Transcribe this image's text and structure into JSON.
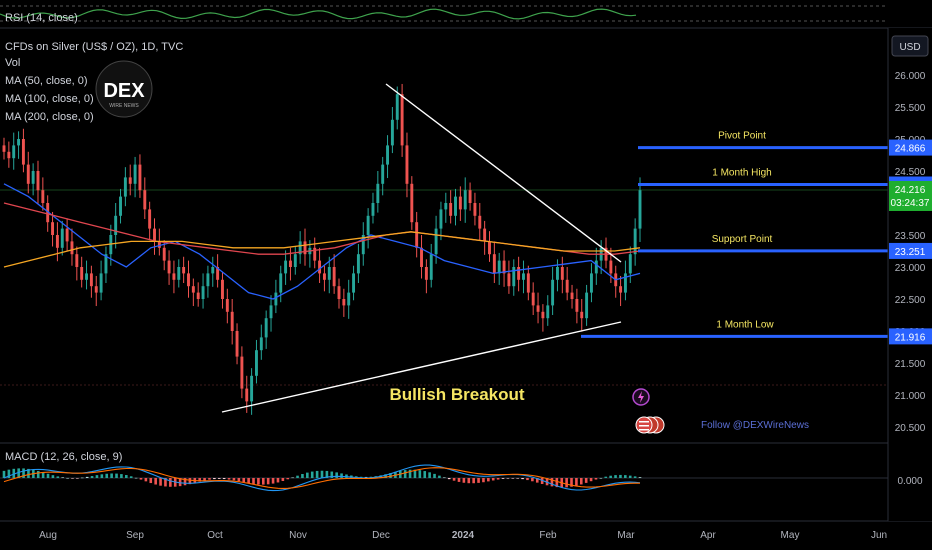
{
  "colors": {
    "background": "#000000",
    "up": "#26a69a",
    "down": "#ef5350",
    "ma50": "#2962ff",
    "ma100": "#e0464f",
    "ma200": "#f5a623",
    "levels": "#2962ff",
    "level_text": "#f5e663",
    "trendline": "#ffffff",
    "macd_line": "#2196f3",
    "signal_line": "#ff6d00",
    "rsi_line": "#3fa34d",
    "price_badge": "#1fae2f"
  },
  "rsi_panel": {
    "label": "RSI (14, close)"
  },
  "legend": {
    "symbol": "CFDs on Silver (US$ / OZ), 1D, TVC",
    "vol": "Vol",
    "ma50": "MA (50, close, 0)",
    "ma100": "MA (100, close, 0)",
    "ma200": "MA (200, close, 0)"
  },
  "logo": {
    "text": "DEX",
    "subtext": "WIRE NEWS"
  },
  "currency_button": "USD",
  "price_axis": {
    "ticks": [
      "26.000",
      "25.500",
      "25.000",
      "24.500",
      "24.000",
      "23.500",
      "23.000",
      "22.500",
      "22.000",
      "21.500",
      "21.000",
      "20.500"
    ]
  },
  "level_labels": [
    {
      "name": "Pivot Point",
      "price": "24.866"
    },
    {
      "name": "1 Month High",
      "price": "24.289"
    },
    {
      "name": "Support Point",
      "price": "23.251"
    },
    {
      "name": "1 Month Low",
      "price": "21.916"
    }
  ],
  "current_price": {
    "price": "24.216",
    "countdown": "03:24:37"
  },
  "annotation": "Bullish Breakout",
  "follow_text": "Follow @DEXWireNews",
  "macd_panel": {
    "label": "MACD (12, 26, close, 9)",
    "axis_value": "0.000"
  },
  "time_axis": [
    "Aug",
    "Sep",
    "Oct",
    "Nov",
    "Dec",
    "2024",
    "Feb",
    "Mar",
    "Apr",
    "May",
    "Jun"
  ],
  "chart_data": {
    "type": "candlestick",
    "title": "CFDs on Silver (US$ / OZ), 1D, TVC",
    "ylim": [
      20.4,
      26.4
    ],
    "y_ticks": [
      26.0,
      25.5,
      25.0,
      24.5,
      24.0,
      23.5,
      23.0,
      22.5,
      22.0,
      21.5,
      21.0,
      20.5
    ],
    "x_ticks": [
      "Aug",
      "Sep",
      "Oct",
      "Nov",
      "Dec",
      "2024",
      "Feb",
      "Mar",
      "Apr",
      "May",
      "Jun"
    ],
    "close_series": [
      24.8,
      24.7,
      24.9,
      25.0,
      24.6,
      24.3,
      24.5,
      24.2,
      24.0,
      23.7,
      23.5,
      23.3,
      23.6,
      23.4,
      23.2,
      23.0,
      22.8,
      22.9,
      22.7,
      22.6,
      22.9,
      23.2,
      23.5,
      23.8,
      24.1,
      24.4,
      24.3,
      24.6,
      24.2,
      23.9,
      23.6,
      23.4,
      23.3,
      23.1,
      22.9,
      22.8,
      23.0,
      22.9,
      22.7,
      22.6,
      22.5,
      22.7,
      22.9,
      23.0,
      22.8,
      22.5,
      22.3,
      22.0,
      21.6,
      21.1,
      20.9,
      21.3,
      21.7,
      21.9,
      22.2,
      22.4,
      22.6,
      22.9,
      23.1,
      23.0,
      23.2,
      23.4,
      23.2,
      23.3,
      23.1,
      22.9,
      22.8,
      23.0,
      22.7,
      22.5,
      22.4,
      22.6,
      22.9,
      23.2,
      23.5,
      23.8,
      24.0,
      24.3,
      24.6,
      24.9,
      25.3,
      25.7,
      24.9,
      24.3,
      23.7,
      23.3,
      23.0,
      22.8,
      23.2,
      23.6,
      23.9,
      24.0,
      23.8,
      24.1,
      23.9,
      24.2,
      24.0,
      23.8,
      23.6,
      23.4,
      23.2,
      22.9,
      23.1,
      22.9,
      22.7,
      23.0,
      22.8,
      22.9,
      22.6,
      22.4,
      22.3,
      22.2,
      22.4,
      22.8,
      23.0,
      22.8,
      22.6,
      22.5,
      22.3,
      22.2,
      22.6,
      22.9,
      23.1,
      23.3,
      23.1,
      22.9,
      22.7,
      22.6,
      22.9,
      23.2,
      23.6,
      24.2
    ],
    "moving_averages": {
      "MA 50": [
        24.3,
        24.1,
        23.8,
        23.5,
        23.2,
        23.0,
        23.3,
        23.4,
        23.2,
        22.9,
        22.6,
        22.5,
        22.7,
        23.0,
        23.3,
        23.5,
        23.4,
        23.3,
        23.1,
        23.0,
        22.9,
        22.95,
        23.0,
        23.05,
        23.1,
        22.8,
        22.9
      ],
      "MA 100": [
        24.0,
        23.9,
        23.8,
        23.7,
        23.6,
        23.5,
        23.4,
        23.35,
        23.3,
        23.25,
        23.2,
        23.2,
        23.25,
        23.3,
        23.4,
        23.5,
        23.55,
        23.5,
        23.45,
        23.4,
        23.35,
        23.3,
        23.25,
        23.2,
        23.2,
        23.25
      ],
      "MA 200": [
        23.0,
        23.1,
        23.2,
        23.3,
        23.35,
        23.4,
        23.4,
        23.4,
        23.35,
        23.3,
        23.3,
        23.3,
        23.35,
        23.4,
        23.45,
        23.5,
        23.55,
        23.5,
        23.45,
        23.4,
        23.35,
        23.3,
        23.25,
        23.25,
        23.25,
        23.3
      ]
    },
    "levels": [
      {
        "name": "Pivot Point",
        "value": 24.866
      },
      {
        "name": "1 Month High",
        "value": 24.289
      },
      {
        "name": "Support Point",
        "value": 23.251
      },
      {
        "name": "1 Month Low",
        "value": 21.916
      }
    ],
    "last_price": 24.216
  }
}
